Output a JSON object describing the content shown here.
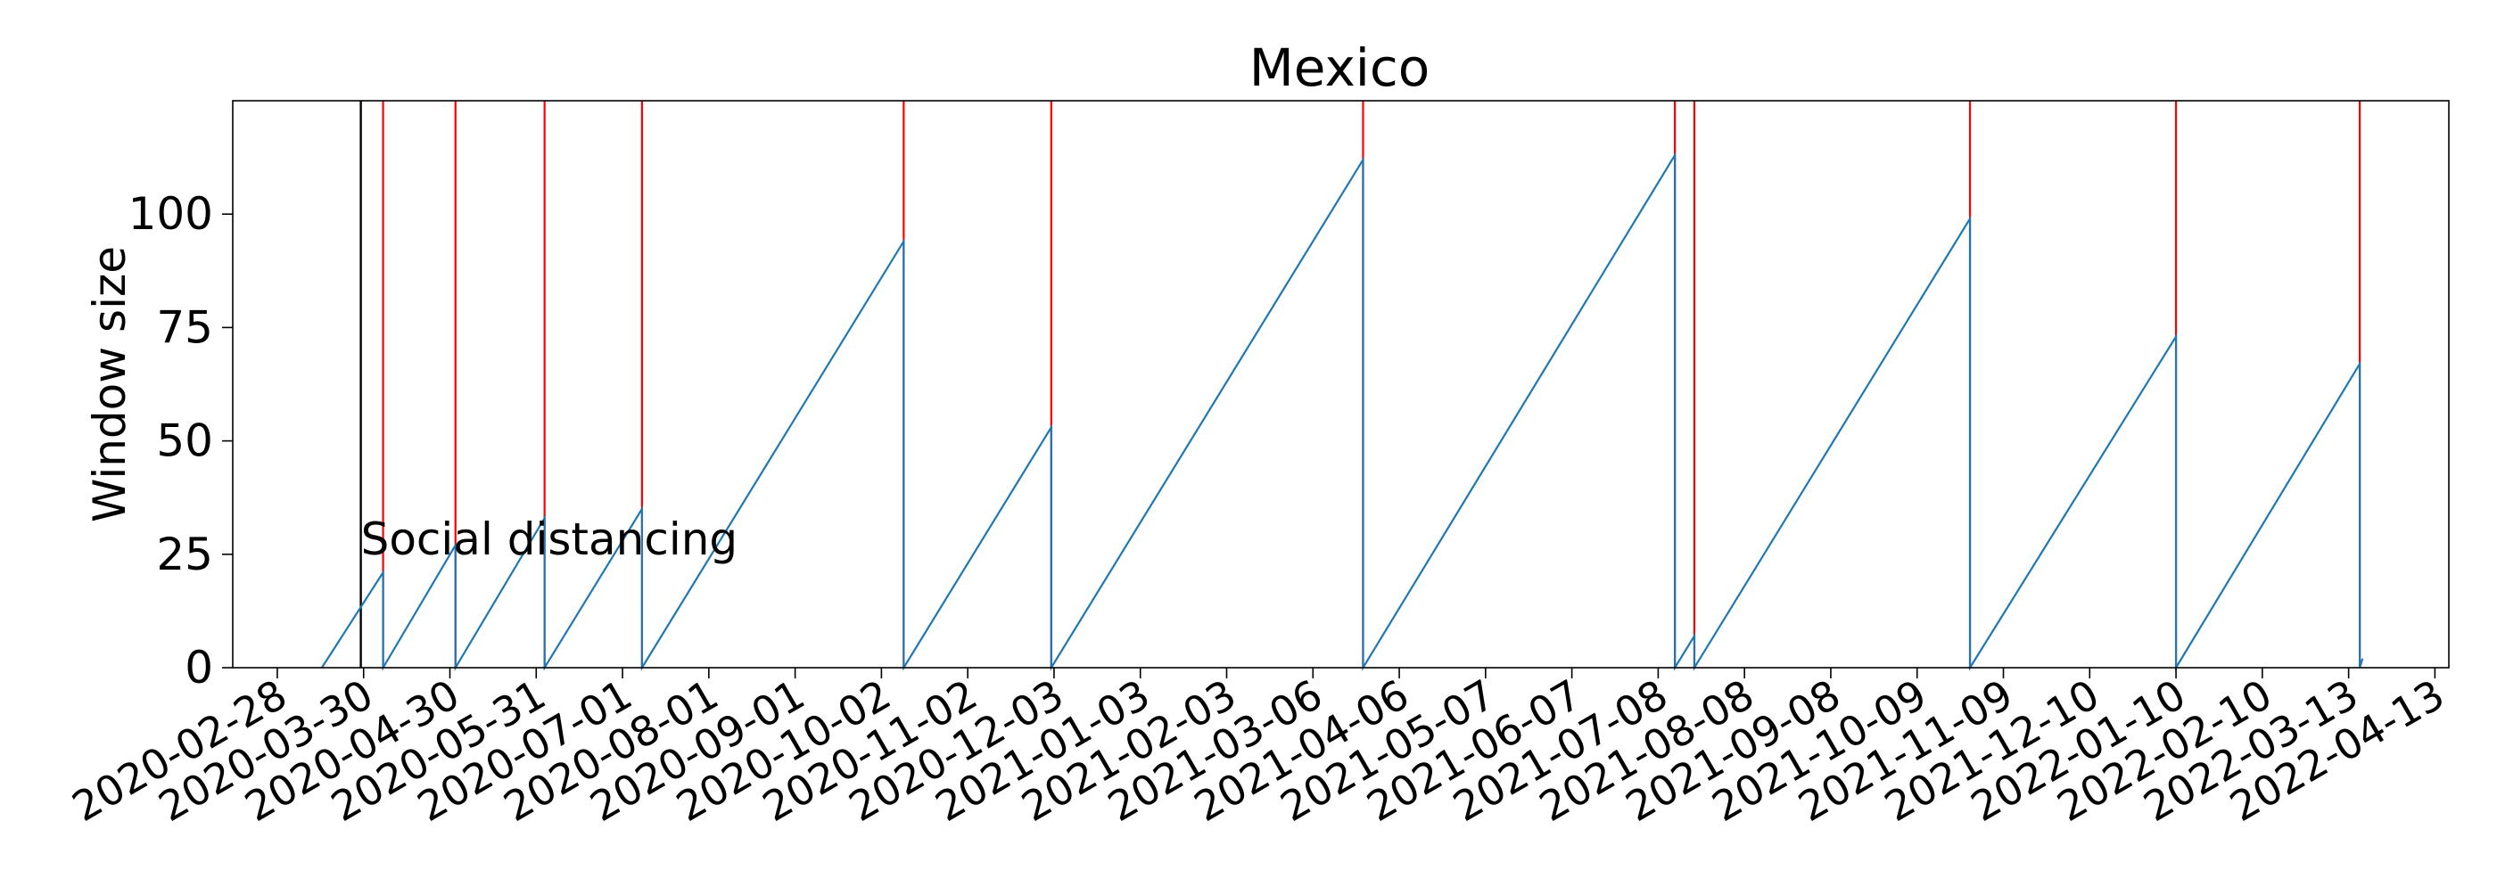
{
  "chart_data": {
    "type": "line",
    "title": "Mexico",
    "xlabel": "",
    "ylabel": "Window size",
    "x_range": [
      "2020-02-12",
      "2022-04-18"
    ],
    "ylim": [
      0,
      125
    ],
    "y_ticks": [
      0,
      25,
      50,
      75,
      100
    ],
    "x_ticks": [
      "2020-02-28",
      "2020-03-30",
      "2020-04-30",
      "2020-05-31",
      "2020-07-01",
      "2020-08-01",
      "2020-09-01",
      "2020-10-02",
      "2020-11-02",
      "2020-12-03",
      "2021-01-03",
      "2021-02-03",
      "2021-03-06",
      "2021-04-06",
      "2021-05-07",
      "2021-06-07",
      "2021-07-08",
      "2021-08-08",
      "2021-09-08",
      "2021-10-09",
      "2021-11-09",
      "2021-12-10",
      "2022-01-10",
      "2022-02-10",
      "2022-03-13",
      "2022-04-13"
    ],
    "grid": false,
    "series": [
      {
        "color": "#1f77b4",
        "points": [
          [
            "2020-03-15",
            0
          ],
          [
            "2020-04-06",
            21
          ],
          [
            "2020-04-06",
            0
          ],
          [
            "2020-05-02",
            27
          ],
          [
            "2020-05-02",
            0
          ],
          [
            "2020-06-03",
            33
          ],
          [
            "2020-06-03",
            0
          ],
          [
            "2020-07-08",
            35
          ],
          [
            "2020-07-08",
            0
          ],
          [
            "2020-10-10",
            94
          ],
          [
            "2020-10-10",
            0
          ],
          [
            "2020-12-02",
            53
          ],
          [
            "2020-12-02",
            0
          ],
          [
            "2021-03-24",
            112
          ],
          [
            "2021-03-24",
            0
          ],
          [
            "2021-07-14",
            113
          ],
          [
            "2021-07-14",
            0
          ],
          [
            "2021-07-21",
            7
          ],
          [
            "2021-07-21",
            0
          ],
          [
            "2021-10-28",
            99
          ],
          [
            "2021-10-28",
            0
          ],
          [
            "2022-01-10",
            73
          ],
          [
            "2022-01-10",
            0
          ],
          [
            "2022-03-17",
            67
          ],
          [
            "2022-03-17",
            0
          ],
          [
            "2022-03-18",
            2
          ]
        ]
      }
    ],
    "vertical_lines": [
      {
        "x": "2020-04-06",
        "color": "#ff0000"
      },
      {
        "x": "2020-05-02",
        "color": "#ff0000"
      },
      {
        "x": "2020-06-03",
        "color": "#ff0000"
      },
      {
        "x": "2020-07-08",
        "color": "#ff0000"
      },
      {
        "x": "2020-10-10",
        "color": "#ff0000"
      },
      {
        "x": "2020-12-02",
        "color": "#ff0000"
      },
      {
        "x": "2021-03-24",
        "color": "#ff0000"
      },
      {
        "x": "2021-07-14",
        "color": "#ff0000"
      },
      {
        "x": "2021-07-21",
        "color": "#ff0000"
      },
      {
        "x": "2021-10-28",
        "color": "#ff0000"
      },
      {
        "x": "2022-01-10",
        "color": "#ff0000"
      },
      {
        "x": "2022-03-17",
        "color": "#ff0000"
      }
    ],
    "annotations": [
      {
        "text": "Social distancing",
        "x": "2020-03-29",
        "color": "#000000"
      }
    ]
  }
}
